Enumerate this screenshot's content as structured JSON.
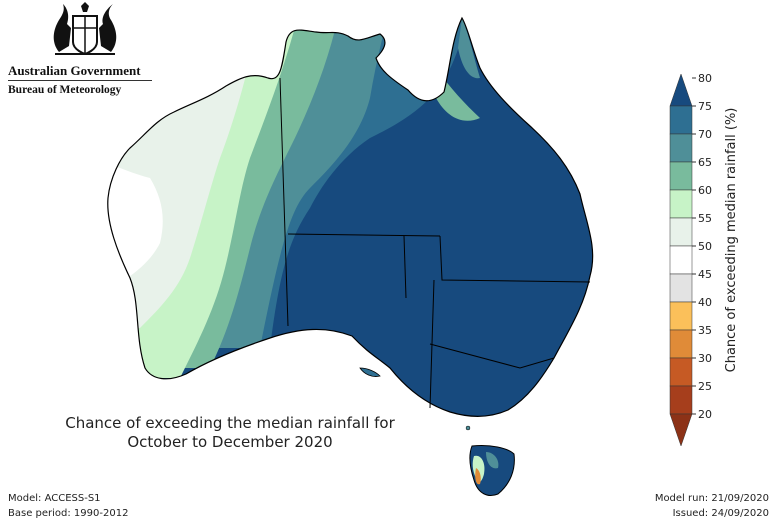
{
  "agency": {
    "name": "Australian Government",
    "bureau": "Bureau of Meteorology"
  },
  "map": {
    "title_line1": "Chance of exceeding the median rainfall for",
    "title_line2": "October to December 2020",
    "legend": {
      "label": "Chance of exceeding median rainfall (%)",
      "ticks": [
        "80",
        "75",
        "70",
        "65",
        "60",
        "55",
        "50",
        "45",
        "40",
        "35",
        "30",
        "25",
        "20"
      ],
      "colors": [
        "#174a7e",
        "#2e6f92",
        "#4f8f98",
        "#79bb9d",
        "#c7f3c7",
        "#e8f2ea",
        "#ffffff",
        "#e3e3e3",
        "#fbc05a",
        "#e08b38",
        "#c65a24",
        "#a63e1c",
        "#8c3217"
      ]
    }
  },
  "footer": {
    "model": "Model: ACCESS-S1",
    "base_period": "Base period: 1990-2012",
    "model_run": "Model run: 21/09/2020",
    "issued": "Issued: 24/09/2020"
  }
}
